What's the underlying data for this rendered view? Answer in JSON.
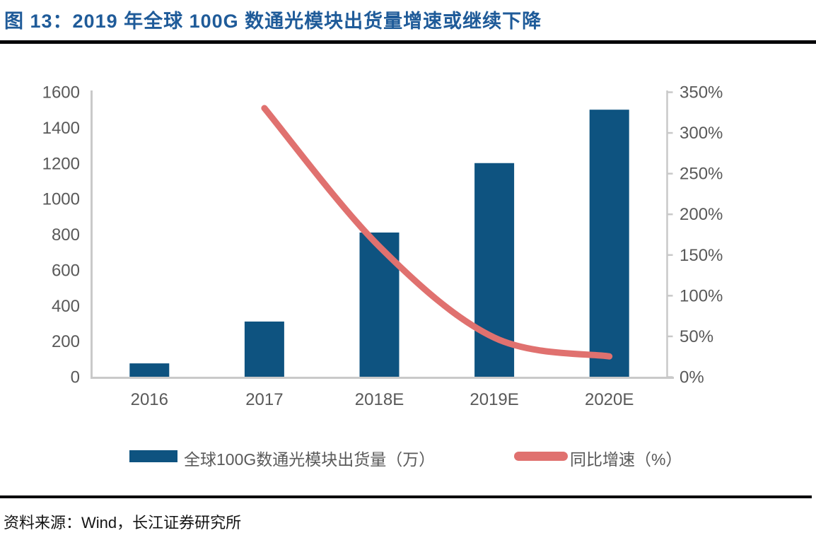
{
  "figure": {
    "title": "图 13：2019 年全球 100G 数通光模块出货量增速或继续下降",
    "title_color": "#1F5B99",
    "source": "资料来源：Wind，长江证券研究所"
  },
  "chart_data": {
    "type": "bar",
    "subtype": "combo-bar-line-dual-axis",
    "categories": [
      "2016",
      "2017",
      "2018E",
      "2019E",
      "2020E"
    ],
    "series": [
      {
        "name": "全球100G数通光模块出货量（万）",
        "chart_type": "bar",
        "axis": "left",
        "color": "#0E5380",
        "values": [
          75,
          310,
          810,
          1200,
          1500
        ]
      },
      {
        "name": "同比增速（%）",
        "chart_type": "line",
        "axis": "right",
        "color": "#E0716F",
        "values": [
          null,
          330,
          160,
          48,
          25
        ]
      }
    ],
    "left_axis": {
      "min": 0,
      "max": 1600,
      "step": 200,
      "tick_labels": [
        "0",
        "200",
        "400",
        "600",
        "800",
        "1000",
        "1200",
        "1400",
        "1600"
      ]
    },
    "right_axis": {
      "min": 0,
      "max": 350,
      "step": 50,
      "tick_labels": [
        "0%",
        "50%",
        "100%",
        "150%",
        "200%",
        "250%",
        "300%",
        "350%"
      ]
    },
    "grid": false,
    "legend_position": "bottom",
    "axis_color": "#C9C9C9",
    "tick_label_color": "#595959"
  }
}
